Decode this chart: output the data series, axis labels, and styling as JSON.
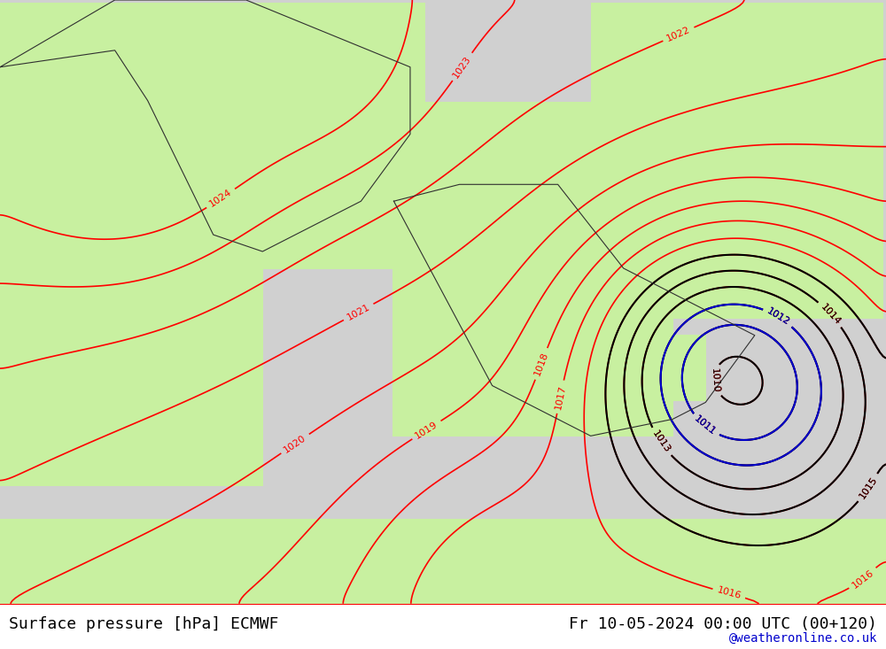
{
  "title_left": "Surface pressure [hPa] ECMWF",
  "title_right": "Fr 10-05-2024 00:00 UTC (00+120)",
  "watermark": "@weatheronline.co.uk",
  "background_land": "#c8f0a0",
  "background_sea": "#d0d0d0",
  "contour_color_red": "#ff0000",
  "contour_color_black": "#000000",
  "contour_color_blue": "#0000cc",
  "text_color_left": "#000000",
  "text_color_right": "#000000",
  "text_color_watermark": "#0000cc",
  "font_size_title": 13,
  "font_size_watermark": 10,
  "figsize": [
    10.0,
    7.33
  ],
  "dpi": 100,
  "lon_min": -5.0,
  "lon_max": 22.0,
  "lat_min": 32.0,
  "lat_max": 50.0
}
